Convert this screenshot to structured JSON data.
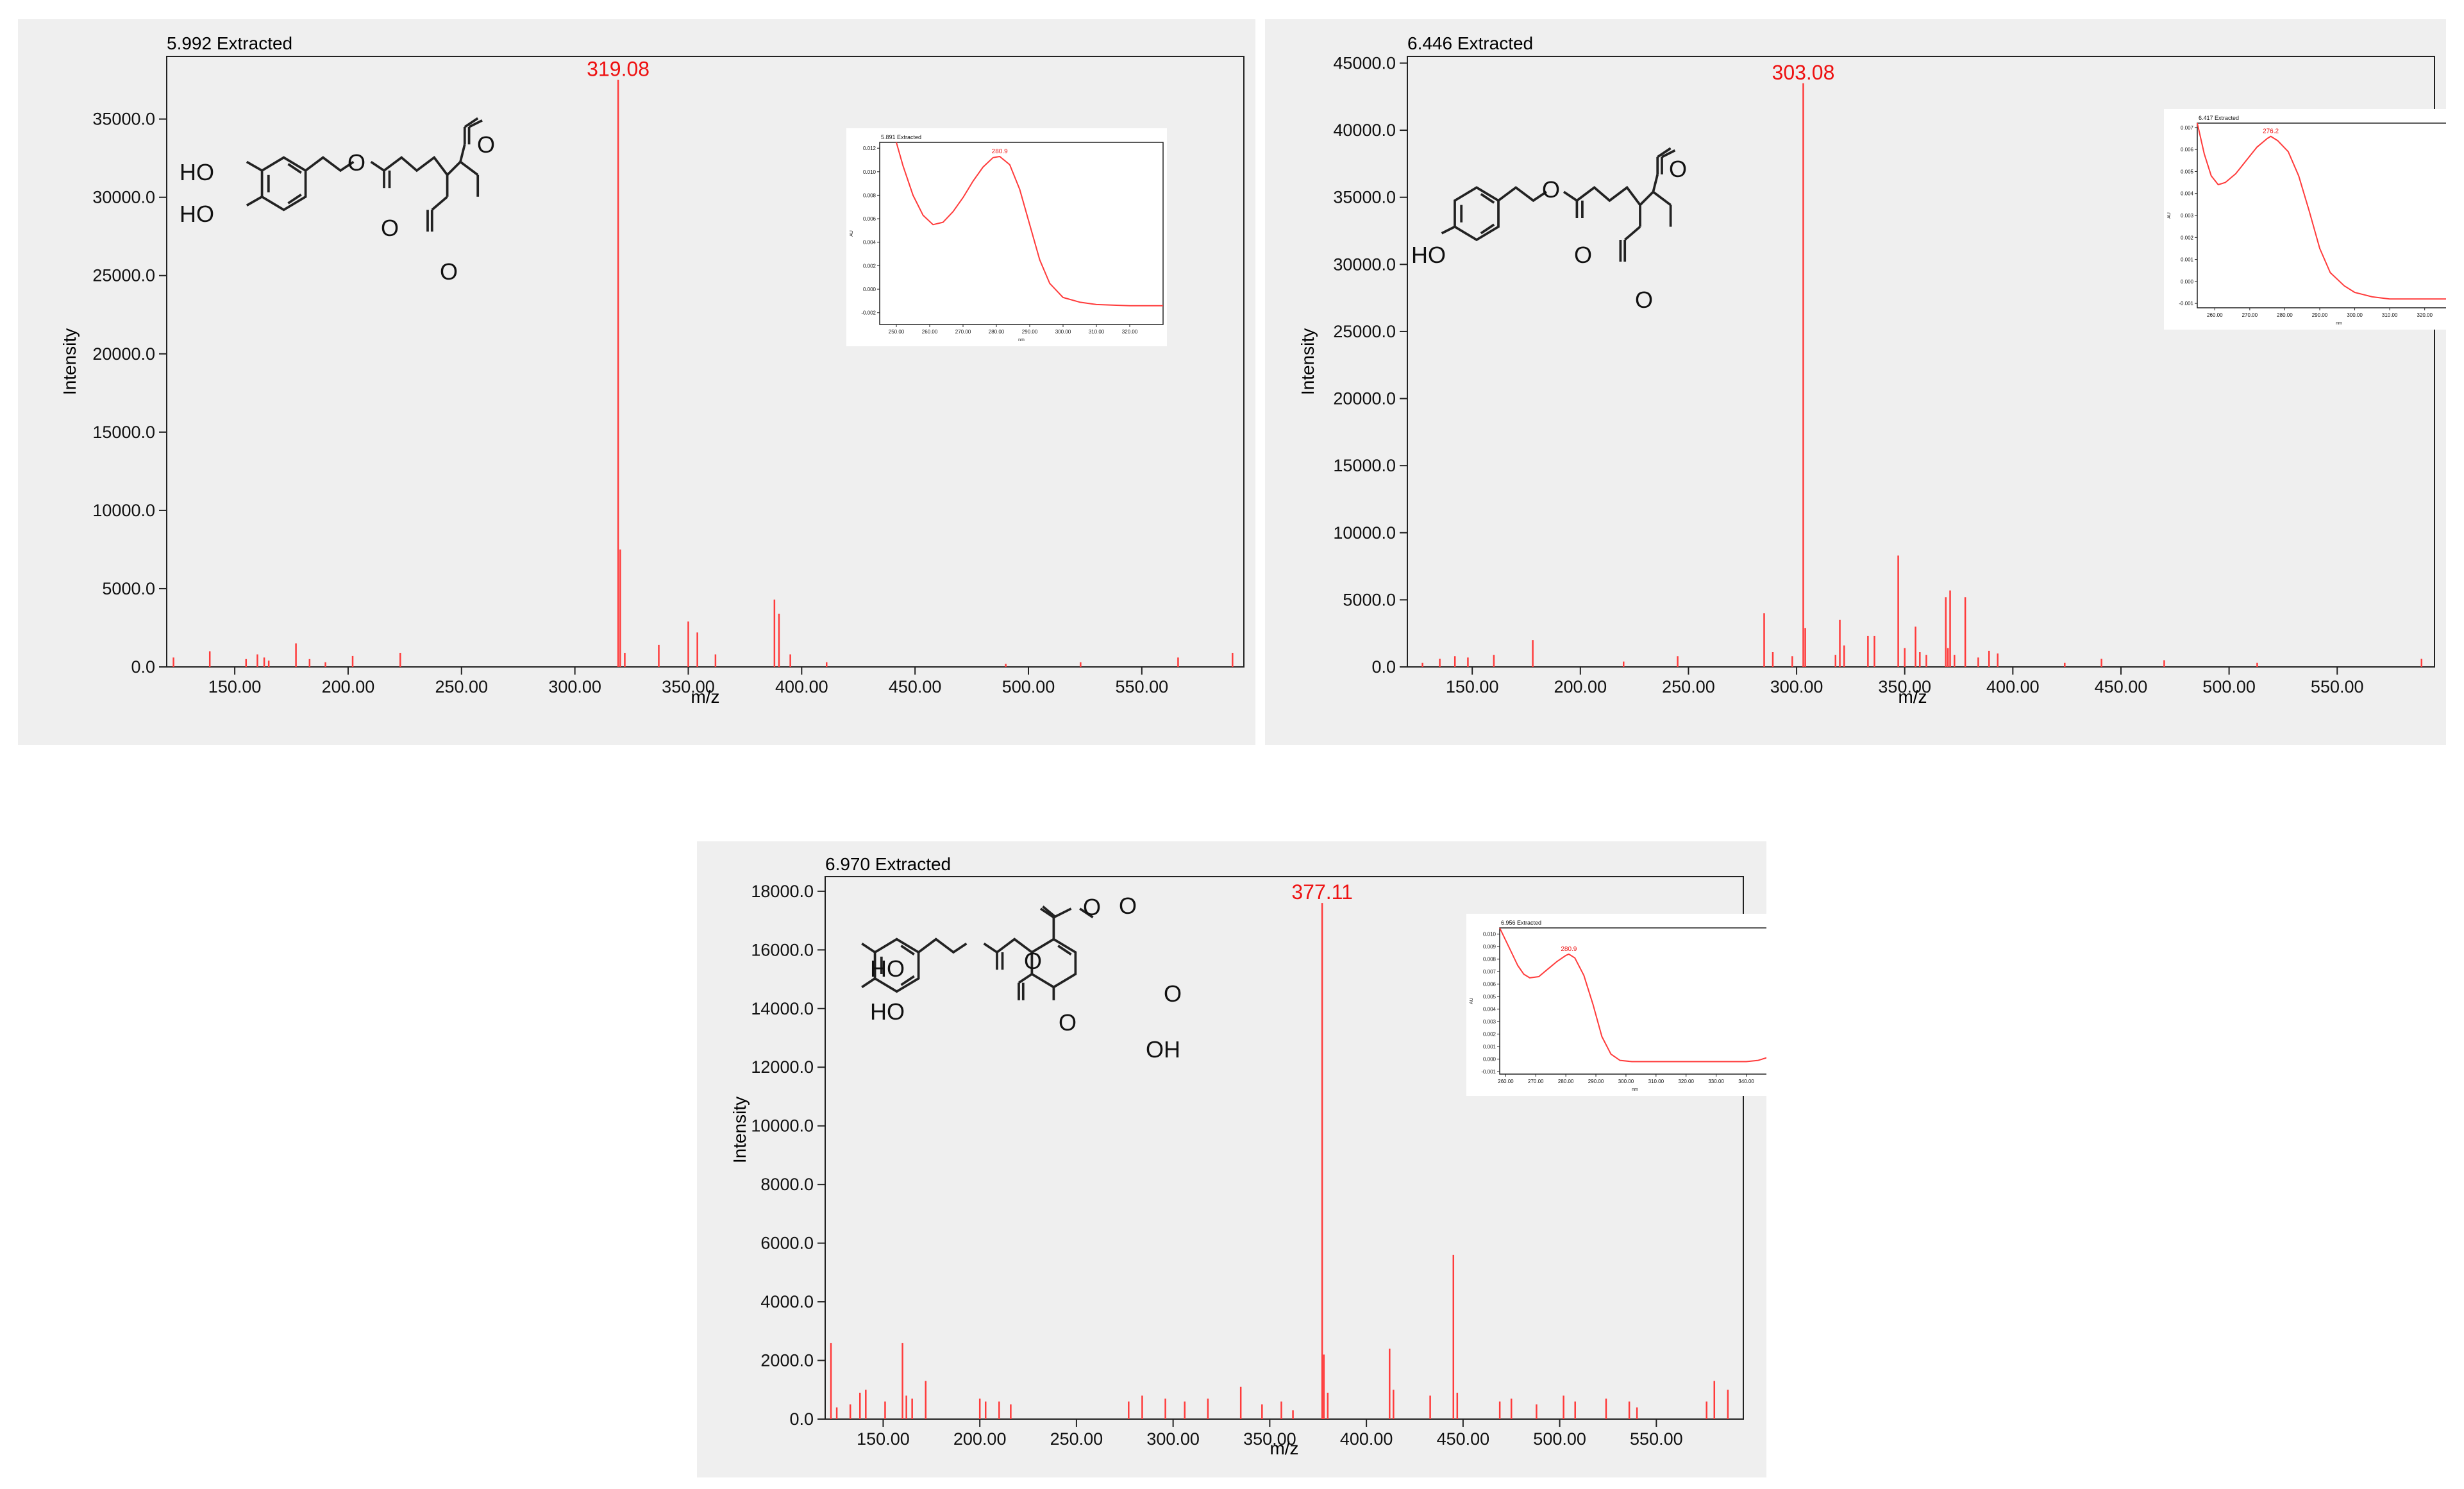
{
  "colors": {
    "spectrum": "#ff3b3b",
    "highlight_text": "#ee1111",
    "panel_bg": "#efefef",
    "plot_bg": "#efefef",
    "axis": "#222222",
    "structure": "#222222"
  },
  "chart_data": [
    {
      "type": "bar",
      "title": "5.992 Extracted",
      "xlabel": "m/z",
      "ylabel": "Intensity",
      "xlim": [
        120,
        595
      ],
      "ylim": [
        0,
        39000
      ],
      "xticks": [
        "150.00",
        "200.00",
        "250.00",
        "300.00",
        "350.00",
        "400.00",
        "450.00",
        "500.00",
        "550.00"
      ],
      "xtick_values": [
        150,
        200,
        250,
        300,
        350,
        400,
        450,
        500,
        550
      ],
      "yticks": [
        "0.0",
        "5000.0",
        "10000.0",
        "15000.0",
        "20000.0",
        "25000.0",
        "30000.0",
        "35000.0"
      ],
      "ytick_values": [
        0,
        5000,
        10000,
        15000,
        20000,
        25000,
        30000,
        35000
      ],
      "base_peak": {
        "mz": 319.08,
        "label": "319.08",
        "intensity": 37500
      },
      "peaks": [
        {
          "x": 123,
          "y": 600
        },
        {
          "x": 139,
          "y": 1000
        },
        {
          "x": 155,
          "y": 500
        },
        {
          "x": 160,
          "y": 800
        },
        {
          "x": 163,
          "y": 600
        },
        {
          "x": 165,
          "y": 400
        },
        {
          "x": 177,
          "y": 1500
        },
        {
          "x": 183,
          "y": 500
        },
        {
          "x": 190,
          "y": 300
        },
        {
          "x": 202,
          "y": 700
        },
        {
          "x": 223,
          "y": 900
        },
        {
          "x": 320,
          "y": 7500
        },
        {
          "x": 322,
          "y": 900
        },
        {
          "x": 337,
          "y": 1400
        },
        {
          "x": 350,
          "y": 2900
        },
        {
          "x": 354,
          "y": 2200
        },
        {
          "x": 362,
          "y": 800
        },
        {
          "x": 388,
          "y": 4300
        },
        {
          "x": 390,
          "y": 3400
        },
        {
          "x": 395,
          "y": 800
        },
        {
          "x": 411,
          "y": 300
        },
        {
          "x": 490,
          "y": 200
        },
        {
          "x": 523,
          "y": 300
        },
        {
          "x": 566,
          "y": 600
        },
        {
          "x": 590,
          "y": 900
        }
      ],
      "structure": {
        "labels": [
          "HO",
          "HO",
          "O",
          "O",
          "O",
          "O"
        ]
      },
      "inset": {
        "type": "line",
        "title": "5.891 Extracted",
        "peak_label": "280.9",
        "xlim": [
          245,
          330
        ],
        "ylim": [
          -0.003,
          0.0125
        ],
        "ylabel": "AU",
        "xlabel": "nm",
        "xticks": [
          "250.00",
          "260.00",
          "270.00",
          "280.00",
          "290.00",
          "300.00",
          "310.00",
          "320.00"
        ],
        "xtick_values": [
          250,
          260,
          270,
          280,
          290,
          300,
          310,
          320
        ],
        "yticks": [
          "0.012",
          "0.010",
          "0.008",
          "0.006",
          "0.004",
          "0.002",
          "0.000",
          "-0.002"
        ],
        "ytick_values": [
          0.012,
          0.01,
          0.008,
          0.006,
          0.004,
          0.002,
          0.0,
          -0.002
        ],
        "series": {
          "x": [
            250,
            252,
            255,
            258,
            261,
            264,
            267,
            270,
            273,
            276,
            279,
            281,
            284,
            287,
            290,
            293,
            296,
            300,
            305,
            310,
            320,
            330
          ],
          "y": [
            0.0125,
            0.0105,
            0.008,
            0.0063,
            0.0055,
            0.0057,
            0.0066,
            0.0078,
            0.0092,
            0.0104,
            0.0112,
            0.0113,
            0.0106,
            0.0085,
            0.0055,
            0.0025,
            0.0005,
            -0.0007,
            -0.0011,
            -0.0013,
            -0.0014,
            -0.0014
          ]
        }
      }
    },
    {
      "type": "bar",
      "title": "6.446 Extracted",
      "xlabel": "m/z",
      "ylabel": "Intensity",
      "xlim": [
        120,
        595
      ],
      "ylim": [
        0,
        45500
      ],
      "xticks": [
        "150.00",
        "200.00",
        "250.00",
        "300.00",
        "350.00",
        "400.00",
        "450.00",
        "500.00",
        "550.00"
      ],
      "xtick_values": [
        150,
        200,
        250,
        300,
        350,
        400,
        450,
        500,
        550
      ],
      "yticks": [
        "0.0",
        "5000.0",
        "10000.0",
        "15000.0",
        "20000.0",
        "25000.0",
        "30000.0",
        "35000.0",
        "40000.0",
        "45000.0"
      ],
      "ytick_values": [
        0,
        5000,
        10000,
        15000,
        20000,
        25000,
        30000,
        35000,
        40000,
        45000
      ],
      "base_peak": {
        "mz": 303.08,
        "label": "303.08",
        "intensity": 43500
      },
      "peaks": [
        {
          "x": 127,
          "y": 300
        },
        {
          "x": 135,
          "y": 600
        },
        {
          "x": 142,
          "y": 800
        },
        {
          "x": 148,
          "y": 700
        },
        {
          "x": 160,
          "y": 900
        },
        {
          "x": 178,
          "y": 2000
        },
        {
          "x": 220,
          "y": 400
        },
        {
          "x": 245,
          "y": 800
        },
        {
          "x": 285,
          "y": 4000
        },
        {
          "x": 289,
          "y": 1100
        },
        {
          "x": 298,
          "y": 800
        },
        {
          "x": 304,
          "y": 2900
        },
        {
          "x": 318,
          "y": 900
        },
        {
          "x": 320,
          "y": 3500
        },
        {
          "x": 322,
          "y": 1600
        },
        {
          "x": 333,
          "y": 2300
        },
        {
          "x": 336,
          "y": 2300
        },
        {
          "x": 347,
          "y": 8300
        },
        {
          "x": 350,
          "y": 1400
        },
        {
          "x": 355,
          "y": 3000
        },
        {
          "x": 357,
          "y": 1100
        },
        {
          "x": 360,
          "y": 900
        },
        {
          "x": 369,
          "y": 5200
        },
        {
          "x": 370,
          "y": 1400
        },
        {
          "x": 371,
          "y": 5700
        },
        {
          "x": 373,
          "y": 900
        },
        {
          "x": 378,
          "y": 5200
        },
        {
          "x": 384,
          "y": 700
        },
        {
          "x": 389,
          "y": 1200
        },
        {
          "x": 393,
          "y": 1000
        },
        {
          "x": 424,
          "y": 300
        },
        {
          "x": 441,
          "y": 600
        },
        {
          "x": 470,
          "y": 500
        },
        {
          "x": 513,
          "y": 300
        },
        {
          "x": 589,
          "y": 600
        }
      ],
      "structure": {
        "labels": [
          "HO",
          "O",
          "O",
          "O",
          "O"
        ]
      },
      "inset": {
        "type": "line",
        "title": "6.417 Extracted",
        "peak_label": "276.2",
        "xlim": [
          255,
          336
        ],
        "ylim": [
          -0.0012,
          0.0072
        ],
        "ylabel": "AU",
        "xlabel": "nm",
        "xticks": [
          "260.00",
          "270.00",
          "280.00",
          "290.00",
          "300.00",
          "310.00",
          "320.00",
          "330.00"
        ],
        "xtick_values": [
          260,
          270,
          280,
          290,
          300,
          310,
          320,
          330
        ],
        "yticks": [
          "0.007",
          "0.006",
          "0.005",
          "0.004",
          "0.003",
          "0.002",
          "0.001",
          "0.000",
          "-0.001"
        ],
        "ytick_values": [
          0.007,
          0.006,
          0.005,
          0.004,
          0.003,
          0.002,
          0.001,
          0.0,
          -0.001
        ],
        "series": {
          "x": [
            255,
            257,
            259,
            261,
            263,
            266,
            269,
            272,
            275,
            276,
            278,
            281,
            284,
            287,
            290,
            293,
            297,
            300,
            305,
            310,
            315,
            320,
            325,
            330,
            334,
            336
          ],
          "y": [
            0.0072,
            0.0058,
            0.0048,
            0.0044,
            0.0045,
            0.0049,
            0.0055,
            0.0061,
            0.0065,
            0.0066,
            0.0064,
            0.0059,
            0.0048,
            0.0032,
            0.0015,
            0.0004,
            -0.0002,
            -0.0005,
            -0.0007,
            -0.0008,
            -0.0008,
            -0.0008,
            -0.0008,
            -0.0008,
            -0.0007,
            -0.0008
          ]
        }
      }
    },
    {
      "type": "bar",
      "title": "6.970 Extracted",
      "xlabel": "m/z",
      "ylabel": "Intensity",
      "xlim": [
        120,
        595
      ],
      "ylim": [
        0,
        18500
      ],
      "xticks": [
        "150.00",
        "200.00",
        "250.00",
        "300.00",
        "350.00",
        "400.00",
        "450.00",
        "500.00",
        "550.00"
      ],
      "xtick_values": [
        150,
        200,
        250,
        300,
        350,
        400,
        450,
        500,
        550
      ],
      "yticks": [
        "0.0",
        "2000.0",
        "4000.0",
        "6000.0",
        "8000.0",
        "10000.0",
        "12000.0",
        "14000.0",
        "16000.0",
        "18000.0"
      ],
      "ytick_values": [
        0,
        2000,
        4000,
        6000,
        8000,
        10000,
        12000,
        14000,
        16000,
        18000
      ],
      "base_peak": {
        "mz": 377.11,
        "label": "377.11",
        "intensity": 17600
      },
      "peaks": [
        {
          "x": 123,
          "y": 2600
        },
        {
          "x": 126,
          "y": 400
        },
        {
          "x": 133,
          "y": 500
        },
        {
          "x": 138,
          "y": 900
        },
        {
          "x": 141,
          "y": 1000
        },
        {
          "x": 151,
          "y": 600
        },
        {
          "x": 160,
          "y": 2600
        },
        {
          "x": 162,
          "y": 800
        },
        {
          "x": 165,
          "y": 700
        },
        {
          "x": 172,
          "y": 1300
        },
        {
          "x": 200,
          "y": 700
        },
        {
          "x": 203,
          "y": 600
        },
        {
          "x": 210,
          "y": 600
        },
        {
          "x": 216,
          "y": 500
        },
        {
          "x": 277,
          "y": 600
        },
        {
          "x": 284,
          "y": 800
        },
        {
          "x": 296,
          "y": 700
        },
        {
          "x": 306,
          "y": 600
        },
        {
          "x": 318,
          "y": 700
        },
        {
          "x": 335,
          "y": 1100
        },
        {
          "x": 346,
          "y": 500
        },
        {
          "x": 356,
          "y": 600
        },
        {
          "x": 362,
          "y": 300
        },
        {
          "x": 378,
          "y": 2200
        },
        {
          "x": 380,
          "y": 900
        },
        {
          "x": 412,
          "y": 2400
        },
        {
          "x": 414,
          "y": 1000
        },
        {
          "x": 433,
          "y": 800
        },
        {
          "x": 445,
          "y": 5600
        },
        {
          "x": 447,
          "y": 900
        },
        {
          "x": 469,
          "y": 600
        },
        {
          "x": 475,
          "y": 700
        },
        {
          "x": 488,
          "y": 500
        },
        {
          "x": 502,
          "y": 800
        },
        {
          "x": 508,
          "y": 600
        },
        {
          "x": 524,
          "y": 700
        },
        {
          "x": 536,
          "y": 600
        },
        {
          "x": 540,
          "y": 400
        },
        {
          "x": 576,
          "y": 600
        },
        {
          "x": 580,
          "y": 1300
        },
        {
          "x": 587,
          "y": 1000
        }
      ],
      "structure": {
        "labels": [
          "HO",
          "HO",
          "O",
          "O",
          "O",
          "O",
          "O",
          "OH"
        ]
      },
      "inset": {
        "type": "line",
        "title": "6.956 Extracted",
        "peak_label": "280.9",
        "xlim": [
          258,
          348
        ],
        "ylim": [
          -0.0012,
          0.0105
        ],
        "ylabel": "AU",
        "xlabel": "nm",
        "xticks": [
          "260.00",
          "270.00",
          "280.00",
          "290.00",
          "300.00",
          "310.00",
          "320.00",
          "330.00",
          "340.00"
        ],
        "xtick_values": [
          260,
          270,
          280,
          290,
          300,
          310,
          320,
          330,
          340
        ],
        "yticks": [
          "0.010",
          "0.009",
          "0.008",
          "0.007",
          "0.006",
          "0.005",
          "0.004",
          "0.003",
          "0.002",
          "0.001",
          "0.000",
          "-0.001"
        ],
        "ytick_values": [
          0.01,
          0.009,
          0.008,
          0.007,
          0.006,
          0.005,
          0.004,
          0.003,
          0.002,
          0.001,
          0.0,
          -0.001
        ],
        "series": {
          "x": [
            258,
            260,
            262,
            264,
            266,
            268,
            271,
            274,
            277,
            280,
            281,
            283,
            286,
            289,
            292,
            295,
            298,
            302,
            306,
            310,
            320,
            330,
            340,
            344,
            348
          ],
          "y": [
            0.0105,
            0.0095,
            0.0085,
            0.0075,
            0.0068,
            0.0065,
            0.0066,
            0.0072,
            0.0078,
            0.0083,
            0.0084,
            0.0081,
            0.0067,
            0.0044,
            0.0018,
            0.0004,
            -0.0001,
            -0.0002,
            -0.0002,
            -0.0002,
            -0.0002,
            -0.0002,
            -0.0002,
            -0.0001,
            0.0002
          ]
        }
      }
    }
  ]
}
